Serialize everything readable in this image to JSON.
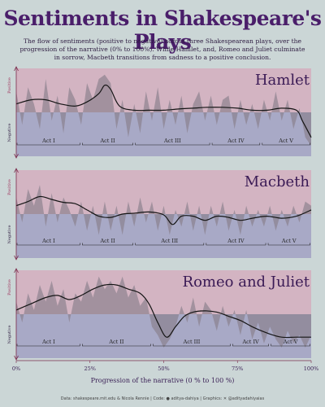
{
  "title": "Sentiments in Shakespeare's Plays",
  "subtitle": "The flow of sentiments (positive to negative) across three Shakespearean plays, over the progression of the narrative (0% to 100%). While Hamlet, and, Romeo and Juliet culminate in sorrow, Macbeth transitions from sadness to a positive conclusion.",
  "footer": "Data: shakespeare.mit.edu & Nicola Rennie | Code: ● aditya-dahiya | Graphics: ✕ @adityadahiyaias",
  "colors": {
    "background": "#cbd6d6",
    "positive_band": "#d3b4c2",
    "negative_band": "#a8a9c6",
    "area": "#877e8a",
    "line": "#151515",
    "title": "#4a1e6a"
  },
  "chart_data": {
    "type": "area",
    "xlabel": "Progression of the narrative (0 % to 100 %)",
    "ylabel_positive": "Positive",
    "ylabel_negative": "Negative",
    "x_ticks": [
      "0%",
      "25%",
      "50%",
      "75%",
      "100%"
    ],
    "x_range": [
      0,
      100
    ],
    "y_range": [
      -1,
      1
    ],
    "panels": [
      {
        "play": "Hamlet",
        "acts": [
          {
            "label": "Act I",
            "start": 0,
            "end": 22
          },
          {
            "label": "Act II",
            "start": 22,
            "end": 40
          },
          {
            "label": "Act III",
            "start": 40,
            "end": 66
          },
          {
            "label": "Act IV",
            "start": 66,
            "end": 83
          },
          {
            "label": "Act V",
            "start": 83,
            "end": 100
          }
        ],
        "smooth_line": [
          [
            0,
            0.2
          ],
          [
            5,
            0.3
          ],
          [
            10,
            0.3
          ],
          [
            15,
            0.2
          ],
          [
            20,
            0.15
          ],
          [
            24,
            0.25
          ],
          [
            28,
            0.45
          ],
          [
            30,
            0.65
          ],
          [
            32,
            0.55
          ],
          [
            35,
            0.15
          ],
          [
            40,
            0.05
          ],
          [
            45,
            0.05
          ],
          [
            50,
            0.05
          ],
          [
            55,
            0.08
          ],
          [
            60,
            0.1
          ],
          [
            65,
            0.12
          ],
          [
            70,
            0.12
          ],
          [
            75,
            0.1
          ],
          [
            80,
            0.05
          ],
          [
            85,
            0.05
          ],
          [
            90,
            0.1
          ],
          [
            95,
            0.05
          ],
          [
            97,
            -0.2
          ],
          [
            100,
            -0.6
          ]
        ],
        "sentiment": [
          [
            0,
            0.5
          ],
          [
            2,
            -0.3
          ],
          [
            4,
            0.6
          ],
          [
            6,
            0.2
          ],
          [
            8,
            -0.4
          ],
          [
            10,
            0.8
          ],
          [
            12,
            -0.2
          ],
          [
            14,
            0.4
          ],
          [
            16,
            -0.5
          ],
          [
            18,
            0.6
          ],
          [
            20,
            0.3
          ],
          [
            22,
            -0.3
          ],
          [
            24,
            0.7
          ],
          [
            26,
            0.3
          ],
          [
            28,
            0.8
          ],
          [
            30,
            0.9
          ],
          [
            32,
            0.7
          ],
          [
            34,
            -0.4
          ],
          [
            36,
            0.3
          ],
          [
            38,
            -0.6
          ],
          [
            40,
            0.2
          ],
          [
            42,
            -0.5
          ],
          [
            44,
            0.5
          ],
          [
            46,
            -0.2
          ],
          [
            48,
            0.6
          ],
          [
            50,
            -0.4
          ],
          [
            52,
            0.3
          ],
          [
            54,
            -0.3
          ],
          [
            56,
            0.4
          ],
          [
            58,
            -0.5
          ],
          [
            60,
            0.2
          ],
          [
            62,
            0.5
          ],
          [
            64,
            -0.2
          ],
          [
            66,
            0.4
          ],
          [
            68,
            -0.3
          ],
          [
            70,
            0.3
          ],
          [
            72,
            0.4
          ],
          [
            74,
            -0.4
          ],
          [
            76,
            0.3
          ],
          [
            78,
            -0.3
          ],
          [
            80,
            0.2
          ],
          [
            82,
            -0.4
          ],
          [
            84,
            0.3
          ],
          [
            86,
            -0.2
          ],
          [
            88,
            0.5
          ],
          [
            90,
            -0.2
          ],
          [
            92,
            0.3
          ],
          [
            94,
            -0.4
          ],
          [
            96,
            0.1
          ],
          [
            98,
            -0.6
          ],
          [
            100,
            -0.8
          ]
        ]
      },
      {
        "play": "Macbeth",
        "acts": [
          {
            "label": "Act I",
            "start": 0,
            "end": 22
          },
          {
            "label": "Act II",
            "start": 22,
            "end": 40
          },
          {
            "label": "Act III",
            "start": 40,
            "end": 64
          },
          {
            "label": "Act IV",
            "start": 64,
            "end": 85
          },
          {
            "label": "Act V",
            "start": 85,
            "end": 100
          }
        ],
        "smooth_line": [
          [
            0,
            0.2
          ],
          [
            4,
            0.3
          ],
          [
            8,
            0.42
          ],
          [
            12,
            0.35
          ],
          [
            16,
            0.28
          ],
          [
            20,
            0.25
          ],
          [
            24,
            0.1
          ],
          [
            28,
            -0.05
          ],
          [
            32,
            -0.08
          ],
          [
            36,
            0.0
          ],
          [
            40,
            0.02
          ],
          [
            45,
            0.05
          ],
          [
            50,
            -0.02
          ],
          [
            53,
            -0.25
          ],
          [
            56,
            -0.05
          ],
          [
            60,
            -0.05
          ],
          [
            64,
            -0.15
          ],
          [
            68,
            -0.05
          ],
          [
            72,
            -0.08
          ],
          [
            76,
            -0.15
          ],
          [
            80,
            -0.1
          ],
          [
            85,
            -0.05
          ],
          [
            90,
            -0.1
          ],
          [
            95,
            -0.05
          ],
          [
            100,
            0.1
          ]
        ],
        "sentiment": [
          [
            0,
            0.4
          ],
          [
            2,
            -0.2
          ],
          [
            4,
            0.6
          ],
          [
            6,
            0.2
          ],
          [
            8,
            0.7
          ],
          [
            10,
            -0.3
          ],
          [
            12,
            0.5
          ],
          [
            14,
            -0.2
          ],
          [
            16,
            0.4
          ],
          [
            18,
            0.1
          ],
          [
            20,
            -0.3
          ],
          [
            22,
            0.3
          ],
          [
            24,
            -0.4
          ],
          [
            26,
            0.2
          ],
          [
            28,
            -0.5
          ],
          [
            30,
            0.3
          ],
          [
            32,
            -0.4
          ],
          [
            34,
            0.2
          ],
          [
            36,
            -0.5
          ],
          [
            38,
            0.3
          ],
          [
            40,
            -0.3
          ],
          [
            42,
            0.4
          ],
          [
            44,
            -0.2
          ],
          [
            46,
            0.3
          ],
          [
            48,
            -0.4
          ],
          [
            50,
            0.2
          ],
          [
            52,
            -0.5
          ],
          [
            54,
            0.1
          ],
          [
            56,
            -0.3
          ],
          [
            58,
            0.3
          ],
          [
            60,
            -0.4
          ],
          [
            62,
            0.2
          ],
          [
            64,
            -0.5
          ],
          [
            66,
            0.2
          ],
          [
            68,
            -0.3
          ],
          [
            70,
            0.3
          ],
          [
            72,
            -0.4
          ],
          [
            74,
            0.1
          ],
          [
            76,
            -0.5
          ],
          [
            78,
            0.2
          ],
          [
            80,
            -0.3
          ],
          [
            82,
            0.1
          ],
          [
            84,
            -0.3
          ],
          [
            86,
            0.2
          ],
          [
            88,
            -0.4
          ],
          [
            90,
            0.1
          ],
          [
            92,
            -0.3
          ],
          [
            94,
            0.2
          ],
          [
            96,
            -0.2
          ],
          [
            98,
            0.3
          ],
          [
            100,
            0.2
          ]
        ]
      },
      {
        "play": "Romeo and Juliet",
        "acts": [
          {
            "label": "Act I",
            "start": 0,
            "end": 22
          },
          {
            "label": "Act II",
            "start": 22,
            "end": 46
          },
          {
            "label": "Act III",
            "start": 46,
            "end": 73
          },
          {
            "label": "Act IV",
            "start": 73,
            "end": 86
          },
          {
            "label": "Act V",
            "start": 86,
            "end": 100
          }
        ],
        "smooth_line": [
          [
            0,
            0.1
          ],
          [
            5,
            0.25
          ],
          [
            10,
            0.4
          ],
          [
            14,
            0.45
          ],
          [
            18,
            0.35
          ],
          [
            22,
            0.45
          ],
          [
            26,
            0.6
          ],
          [
            30,
            0.7
          ],
          [
            34,
            0.7
          ],
          [
            38,
            0.6
          ],
          [
            42,
            0.5
          ],
          [
            45,
            0.25
          ],
          [
            48,
            -0.2
          ],
          [
            51,
            -0.55
          ],
          [
            54,
            -0.3
          ],
          [
            57,
            -0.05
          ],
          [
            60,
            0.05
          ],
          [
            64,
            0.08
          ],
          [
            68,
            0.05
          ],
          [
            72,
            -0.05
          ],
          [
            76,
            -0.15
          ],
          [
            80,
            -0.3
          ],
          [
            85,
            -0.45
          ],
          [
            90,
            -0.55
          ],
          [
            95,
            -0.55
          ],
          [
            100,
            -0.55
          ]
        ],
        "sentiment": [
          [
            0,
            0.3
          ],
          [
            2,
            -0.2
          ],
          [
            4,
            0.5
          ],
          [
            6,
            0.1
          ],
          [
            8,
            0.7
          ],
          [
            10,
            0.3
          ],
          [
            12,
            0.8
          ],
          [
            14,
            0.2
          ],
          [
            16,
            0.6
          ],
          [
            18,
            -0.2
          ],
          [
            20,
            0.5
          ],
          [
            22,
            0.3
          ],
          [
            24,
            0.8
          ],
          [
            26,
            0.4
          ],
          [
            28,
            0.9
          ],
          [
            30,
            0.6
          ],
          [
            32,
            0.8
          ],
          [
            34,
            0.5
          ],
          [
            36,
            0.9
          ],
          [
            38,
            0.4
          ],
          [
            40,
            0.7
          ],
          [
            42,
            0.2
          ],
          [
            44,
            0.4
          ],
          [
            46,
            -0.3
          ],
          [
            48,
            -0.5
          ],
          [
            50,
            -0.8
          ],
          [
            52,
            -0.6
          ],
          [
            54,
            -0.3
          ],
          [
            56,
            0.2
          ],
          [
            58,
            -0.2
          ],
          [
            60,
            0.4
          ],
          [
            62,
            -0.3
          ],
          [
            64,
            0.3
          ],
          [
            66,
            0.1
          ],
          [
            68,
            -0.4
          ],
          [
            70,
            0.2
          ],
          [
            72,
            -0.3
          ],
          [
            74,
            0.1
          ],
          [
            76,
            -0.5
          ],
          [
            78,
            0.1
          ],
          [
            80,
            -0.6
          ],
          [
            82,
            -0.2
          ],
          [
            84,
            -0.7
          ],
          [
            86,
            -0.3
          ],
          [
            88,
            -0.6
          ],
          [
            90,
            -0.8
          ],
          [
            92,
            -0.4
          ],
          [
            94,
            -0.7
          ],
          [
            96,
            -0.5
          ],
          [
            98,
            -0.8
          ],
          [
            100,
            -0.5
          ]
        ]
      }
    ]
  }
}
